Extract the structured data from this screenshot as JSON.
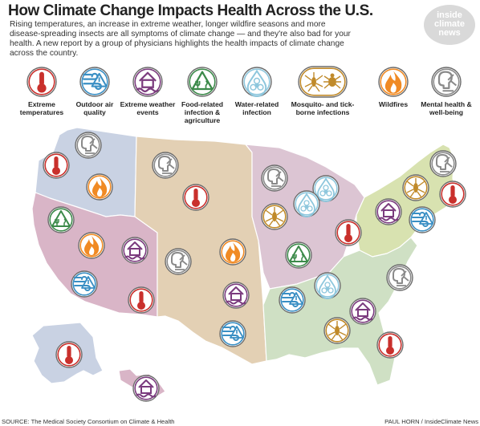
{
  "header": {
    "title": "How Climate Change Impacts Health Across the U.S.",
    "subtitle": "Rising temperatures, an increase in extreme weather, longer wildfire seasons and more disease-spreading insects are all symptoms of climate change — and they're also bad for your health. A new report by a group of physicians highlights the health impacts of climate change across the country.",
    "brand_lines": [
      "inside",
      "climate",
      "news"
    ]
  },
  "legend": [
    {
      "key": "temp",
      "label": "Extreme temperatures",
      "color": "#c9302c"
    },
    {
      "key": "air",
      "label": "Outdoor air quality",
      "color": "#3a8fc4"
    },
    {
      "key": "weather",
      "label": "Extreme weather events",
      "color": "#7b3b7e"
    },
    {
      "key": "food",
      "label": "Food-related infection & agriculture",
      "color": "#3c8a4a"
    },
    {
      "key": "water",
      "label": "Water-related infection",
      "color": "#8ec7dd"
    },
    {
      "key": "mosquito",
      "label": "Mosquito- and tick-borne infections",
      "color": "#c08a2a"
    },
    {
      "key": "fire",
      "label": "Wildfires",
      "color": "#f08a24"
    },
    {
      "key": "mental",
      "label": "Mental health & well-being",
      "color": "#8a8a8a"
    }
  ],
  "regions": [
    {
      "name": "northwest",
      "color": "#c9d2e3"
    },
    {
      "name": "southwest",
      "color": "#d9b5c7"
    },
    {
      "name": "great-plains",
      "color": "#e3d0b4"
    },
    {
      "name": "midwest",
      "color": "#dcc5d3"
    },
    {
      "name": "northeast",
      "color": "#d8e2b0"
    },
    {
      "name": "southeast",
      "color": "#cfe0c4"
    },
    {
      "name": "alaska",
      "color": "#c9d2e3"
    },
    {
      "name": "hawaii",
      "color": "#d9b5c7"
    }
  ],
  "footer": {
    "source": "SOURCE: The Medical Society Consortium on Climate & Health",
    "credit": "PAUL HORN / InsideClimate News"
  }
}
